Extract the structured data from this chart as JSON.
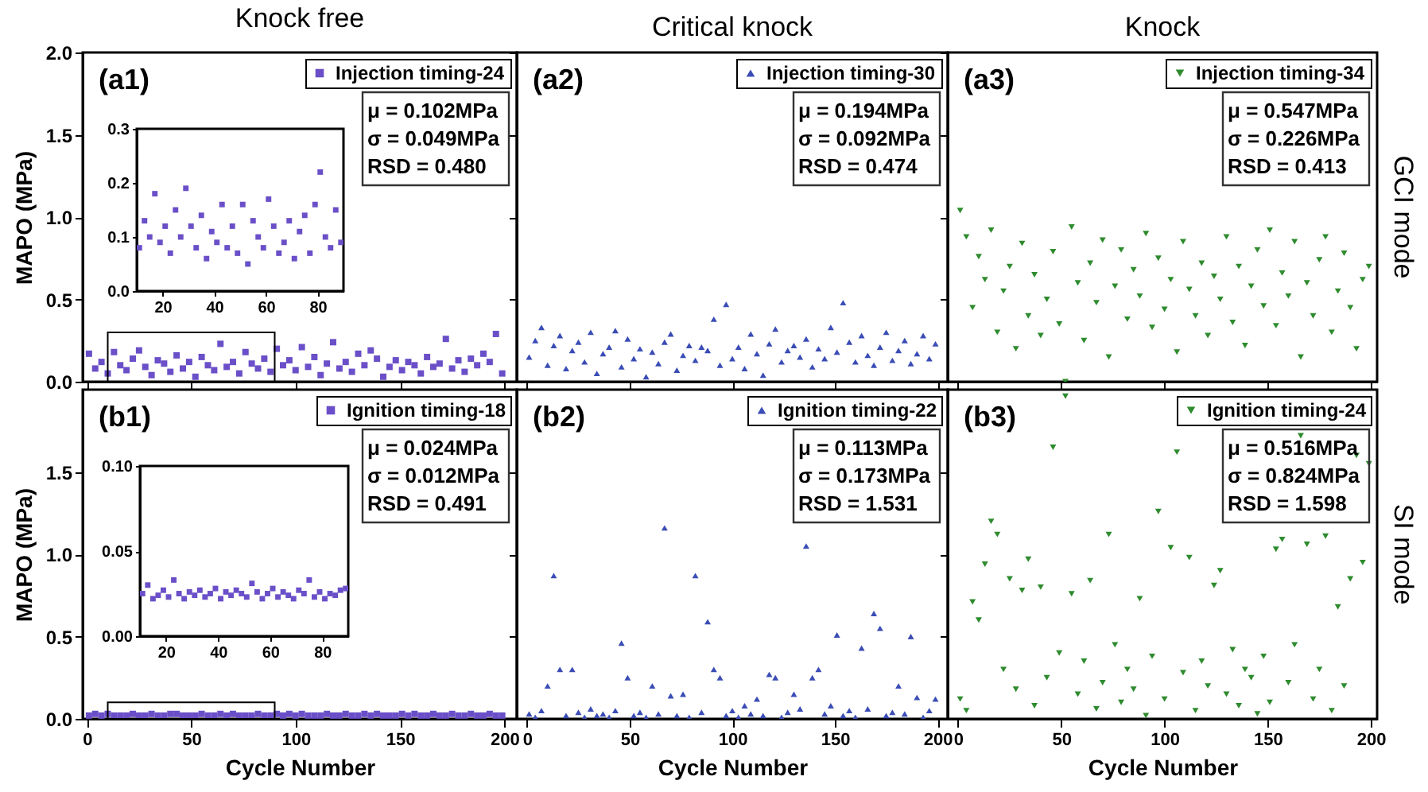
{
  "chart_data": [
    {
      "type": "scatter",
      "title": "Knock free",
      "ylabel": "MAPO (MPa)",
      "marker": "square",
      "legend": "top right",
      "tick_labels": "y",
      "xlim": [
        -2,
        206
      ],
      "xticks": [
        0,
        50,
        100,
        150,
        200
      ],
      "ylim": [
        0,
        2
      ],
      "yticks": [
        {
          "value": 0,
          "label": "0.0"
        },
        {
          "value": 0.5,
          "label": "0.5"
        },
        {
          "value": 1,
          "label": "1.0"
        },
        {
          "value": 1.5,
          "label": "1.5"
        },
        {
          "value": 2,
          "label": "2.0"
        }
      ],
      "annotations": [
        "(a1)",
        "μ = 0.102MPa",
        "σ = 0.049MPa",
        "RSD = 0.480"
      ],
      "x": [
        1,
        4,
        7,
        10,
        13,
        16,
        19,
        22,
        25,
        28,
        31,
        34,
        37,
        40,
        43,
        46,
        49,
        52,
        55,
        58,
        61,
        64,
        67,
        70,
        73,
        76,
        79,
        82,
        85,
        88,
        91,
        94,
        97,
        100,
        103,
        106,
        109,
        112,
        115,
        118,
        121,
        124,
        127,
        130,
        133,
        136,
        139,
        142,
        145,
        148,
        151,
        154,
        157,
        160,
        163,
        166,
        169,
        172,
        175,
        178,
        181,
        184,
        187,
        190,
        193,
        196,
        199
      ],
      "series": [
        {
          "name": "Injection timing-24",
          "color": "#6a4fc8",
          "values": [
            0.17,
            0.08,
            0.12,
            0.05,
            0.18,
            0.1,
            0.07,
            0.14,
            0.19,
            0.09,
            0.04,
            0.13,
            0.11,
            0.06,
            0.16,
            0.08,
            0.12,
            0.03,
            0.15,
            0.1,
            0.07,
            0.23,
            0.09,
            0.12,
            0.05,
            0.18,
            0.11,
            0.08,
            0.14,
            0.06,
            0.2,
            0.1,
            0.13,
            0.07,
            0.21,
            0.09,
            0.15,
            0.04,
            0.11,
            0.24,
            0.08,
            0.12,
            0.06,
            0.17,
            0.1,
            0.19,
            0.14,
            0.03,
            0.09,
            0.13,
            0.07,
            0.12,
            0.1,
            0.05,
            0.15,
            0.09,
            0.11,
            0.26,
            0.08,
            0.13,
            0.06,
            0.14,
            0.1,
            0.17,
            0.12,
            0.29,
            0.05
          ]
        }
      ]
    },
    {
      "type": "scatter",
      "marker": "square",
      "xlim": [
        10,
        90
      ],
      "xticks": [
        20,
        40,
        60,
        80
      ],
      "ylim": [
        0,
        0.3
      ],
      "yticks": [
        {
          "value": 0,
          "label": "0.0"
        },
        {
          "value": 0.1,
          "label": "0.1"
        },
        {
          "value": 0.2,
          "label": "0.2"
        },
        {
          "value": 0.3,
          "label": "0.3"
        }
      ],
      "x": [
        11,
        13,
        15,
        17,
        19,
        21,
        23,
        25,
        27,
        29,
        31,
        33,
        35,
        37,
        39,
        41,
        43,
        45,
        47,
        49,
        51,
        53,
        55,
        57,
        59,
        61,
        63,
        65,
        67,
        69,
        71,
        73,
        75,
        77,
        79,
        81,
        83,
        85,
        87,
        89
      ],
      "series": [
        {
          "color": "#6a4fc8",
          "values": [
            0.08,
            0.13,
            0.1,
            0.18,
            0.09,
            0.12,
            0.07,
            0.15,
            0.1,
            0.19,
            0.12,
            0.08,
            0.14,
            0.06,
            0.11,
            0.09,
            0.16,
            0.08,
            0.12,
            0.07,
            0.16,
            0.05,
            0.13,
            0.1,
            0.08,
            0.17,
            0.12,
            0.07,
            0.09,
            0.13,
            0.06,
            0.11,
            0.14,
            0.07,
            0.16,
            0.22,
            0.1,
            0.08,
            0.15,
            0.09
          ]
        }
      ]
    },
    {
      "type": "scatter",
      "title": "Critical knock",
      "marker": "triangle",
      "legend": "top right",
      "tick_labels": false,
      "xlim": [
        -5,
        205
      ],
      "xticks": [
        0,
        50,
        100,
        150,
        200
      ],
      "ylim": [
        0,
        2
      ],
      "yticks": [
        0,
        0.5,
        1,
        1.5,
        2
      ],
      "annotations": [
        "(a2)",
        "μ = 0.194MPa",
        "σ = 0.092MPa",
        "RSD = 0.474"
      ],
      "x": [
        1,
        4,
        7,
        10,
        13,
        16,
        19,
        22,
        25,
        28,
        31,
        34,
        37,
        40,
        43,
        46,
        49,
        52,
        55,
        58,
        61,
        64,
        67,
        70,
        73,
        76,
        79,
        82,
        85,
        88,
        91,
        94,
        97,
        100,
        103,
        106,
        109,
        112,
        115,
        118,
        121,
        124,
        127,
        130,
        133,
        136,
        139,
        142,
        145,
        148,
        151,
        154,
        157,
        160,
        163,
        166,
        169,
        172,
        175,
        178,
        181,
        184,
        187,
        190,
        193,
        196,
        199
      ],
      "series": [
        {
          "name": "Injection timing-30",
          "color": "#3a4cb5",
          "values": [
            0.15,
            0.25,
            0.33,
            0.1,
            0.22,
            0.28,
            0.08,
            0.19,
            0.24,
            0.12,
            0.3,
            0.05,
            0.17,
            0.21,
            0.31,
            0.09,
            0.26,
            0.14,
            0.2,
            0.03,
            0.18,
            0.11,
            0.24,
            0.29,
            0.07,
            0.16,
            0.22,
            0.13,
            0.21,
            0.19,
            0.38,
            0.1,
            0.47,
            0.14,
            0.21,
            0.08,
            0.29,
            0.17,
            0.04,
            0.23,
            0.32,
            0.12,
            0.19,
            0.22,
            0.15,
            0.26,
            0.09,
            0.2,
            0.14,
            0.33,
            0.18,
            0.48,
            0.24,
            0.12,
            0.28,
            0.16,
            0.1,
            0.21,
            0.3,
            0.13,
            0.19,
            0.25,
            0.11,
            0.17,
            0.28,
            0.14,
            0.23
          ]
        }
      ]
    },
    {
      "type": "scatter",
      "title": "Knock",
      "y2label": "GCI mode",
      "marker": "triangle-down",
      "legend": "top right",
      "tick_labels": false,
      "xlim": [
        -5,
        203
      ],
      "xticks": [
        0,
        50,
        100,
        150,
        200
      ],
      "ylim": [
        0,
        2
      ],
      "yticks": [
        0,
        0.5,
        1,
        1.5,
        2
      ],
      "annotations": [
        "(a3)",
        "μ = 0.547MPa",
        "σ = 0.226MPa",
        "RSD = 0.413"
      ],
      "x": [
        1,
        4,
        7,
        10,
        13,
        16,
        19,
        22,
        25,
        28,
        31,
        34,
        37,
        40,
        43,
        46,
        49,
        52,
        55,
        58,
        61,
        64,
        67,
        70,
        73,
        76,
        79,
        82,
        85,
        88,
        91,
        94,
        97,
        100,
        103,
        106,
        109,
        112,
        115,
        118,
        121,
        124,
        127,
        130,
        133,
        136,
        139,
        142,
        145,
        148,
        151,
        154,
        157,
        160,
        163,
        166,
        169,
        172,
        175,
        178,
        181,
        184,
        187,
        190,
        193,
        196,
        199
      ],
      "series": [
        {
          "name": "Injection timing-34",
          "color": "#2e8b2e",
          "values": [
            1.04,
            0.88,
            0.45,
            0.76,
            0.62,
            0.92,
            0.3,
            0.55,
            0.7,
            0.2,
            0.84,
            0.4,
            0.65,
            0.28,
            0.5,
            0.79,
            0.35,
            0.0,
            0.94,
            0.6,
            0.25,
            0.72,
            0.48,
            0.86,
            0.15,
            0.58,
            0.8,
            0.38,
            0.68,
            0.52,
            0.9,
            0.33,
            0.75,
            0.44,
            0.62,
            0.18,
            0.85,
            0.56,
            0.4,
            0.72,
            0.28,
            0.64,
            0.5,
            0.88,
            0.36,
            0.7,
            0.22,
            0.58,
            0.8,
            0.46,
            0.92,
            0.34,
            0.66,
            0.52,
            0.85,
            0.15,
            0.6,
            0.4,
            0.74,
            0.88,
            0.3,
            0.55,
            0.78,
            0.45,
            0.2,
            0.62,
            0.7
          ]
        }
      ]
    },
    {
      "type": "scatter",
      "ylabel": "MAPO (MPa)",
      "xlabel": "Cycle Number",
      "marker": "square",
      "legend": "top right",
      "xlim": [
        -2,
        206
      ],
      "xticks": [
        0,
        50,
        100,
        150,
        200
      ],
      "ylim": [
        0,
        2
      ],
      "yticks": [
        {
          "value": 0,
          "label": "0.0"
        },
        {
          "value": 0.5,
          "label": "0.5"
        },
        {
          "value": 1,
          "label": "1.0"
        },
        {
          "value": 1.5,
          "label": "1.5"
        }
      ],
      "annotations": [
        "(b1)",
        "μ = 0.024MPa",
        "σ = 0.012MPa",
        "RSD = 0.491"
      ],
      "x": [
        1,
        4,
        7,
        10,
        13,
        16,
        19,
        22,
        25,
        28,
        31,
        34,
        37,
        40,
        43,
        46,
        49,
        52,
        55,
        58,
        61,
        64,
        67,
        70,
        73,
        76,
        79,
        82,
        85,
        88,
        91,
        94,
        97,
        100,
        103,
        106,
        109,
        112,
        115,
        118,
        121,
        124,
        127,
        130,
        133,
        136,
        139,
        142,
        145,
        148,
        151,
        154,
        157,
        160,
        163,
        166,
        169,
        172,
        175,
        178,
        181,
        184,
        187,
        190,
        193,
        196,
        199
      ],
      "series": [
        {
          "name": "Ignition timing-18",
          "color": "#6a4fc8",
          "values": [
            0.02,
            0.03,
            0.02,
            0.03,
            0.02,
            0.02,
            0.02,
            0.03,
            0.02,
            0.02,
            0.03,
            0.02,
            0.02,
            0.03,
            0.03,
            0.02,
            0.02,
            0.02,
            0.03,
            0.02,
            0.02,
            0.03,
            0.02,
            0.03,
            0.02,
            0.02,
            0.02,
            0.03,
            0.02,
            0.02,
            0.03,
            0.02,
            0.03,
            0.02,
            0.03,
            0.02,
            0.02,
            0.02,
            0.03,
            0.02,
            0.02,
            0.03,
            0.02,
            0.02,
            0.03,
            0.02,
            0.03,
            0.02,
            0.02,
            0.02,
            0.03,
            0.02,
            0.03,
            0.02,
            0.02,
            0.03,
            0.02,
            0.02,
            0.03,
            0.02,
            0.02,
            0.03,
            0.02,
            0.02,
            0.03,
            0.02,
            0.02
          ]
        }
      ]
    },
    {
      "type": "scatter",
      "marker": "square",
      "xlim": [
        10,
        90
      ],
      "xticks": [
        20,
        40,
        60,
        80
      ],
      "ylim": [
        0,
        0.1
      ],
      "yticks": [
        {
          "value": 0,
          "label": "0.00"
        },
        {
          "value": 0.05,
          "label": "0.05"
        },
        {
          "value": 0.1,
          "label": "0.10"
        }
      ],
      "x": [
        11,
        13,
        15,
        17,
        19,
        21,
        23,
        25,
        27,
        29,
        31,
        33,
        35,
        37,
        39,
        41,
        43,
        45,
        47,
        49,
        51,
        53,
        55,
        57,
        59,
        61,
        63,
        65,
        67,
        69,
        71,
        73,
        75,
        77,
        79,
        81,
        83,
        85,
        87,
        89
      ],
      "series": [
        {
          "color": "#6a4fc8",
          "values": [
            0.025,
            0.03,
            0.022,
            0.024,
            0.027,
            0.023,
            0.033,
            0.025,
            0.022,
            0.026,
            0.024,
            0.027,
            0.023,
            0.025,
            0.028,
            0.022,
            0.026,
            0.024,
            0.027,
            0.025,
            0.023,
            0.031,
            0.026,
            0.022,
            0.025,
            0.028,
            0.023,
            0.026,
            0.024,
            0.022,
            0.027,
            0.025,
            0.033,
            0.023,
            0.026,
            0.022,
            0.025,
            0.024,
            0.027,
            0.028
          ]
        }
      ]
    },
    {
      "type": "scatter",
      "xlabel": "Cycle Number",
      "marker": "triangle",
      "legend": "top right",
      "tick_labels": "x",
      "xlim": [
        -5,
        205
      ],
      "xticks": [
        0,
        50,
        100,
        150,
        200
      ],
      "ylim": [
        0,
        2
      ],
      "yticks": [
        0,
        0.5,
        1,
        1.5
      ],
      "annotations": [
        "(b2)",
        "μ = 0.113MPa",
        "σ = 0.173MPa",
        "RSD = 1.531"
      ],
      "x": [
        1,
        4,
        7,
        10,
        13,
        16,
        19,
        22,
        25,
        28,
        31,
        34,
        37,
        40,
        43,
        46,
        49,
        52,
        55,
        58,
        61,
        64,
        67,
        70,
        73,
        76,
        79,
        82,
        85,
        88,
        91,
        94,
        97,
        100,
        103,
        106,
        109,
        112,
        115,
        118,
        121,
        124,
        127,
        130,
        133,
        136,
        139,
        142,
        145,
        148,
        151,
        154,
        157,
        160,
        163,
        166,
        169,
        172,
        175,
        178,
        181,
        184,
        187,
        190,
        193,
        196,
        199
      ],
      "series": [
        {
          "name": "Ignition timing-22",
          "color": "#3a4cb5",
          "values": [
            0.03,
            0.01,
            0.05,
            0.2,
            0.87,
            0.3,
            0.02,
            0.3,
            0.04,
            0.01,
            0.06,
            0.02,
            0.03,
            0.01,
            0.05,
            0.46,
            0.25,
            0.02,
            0.04,
            0.01,
            0.2,
            0.03,
            1.16,
            0.14,
            0.02,
            0.15,
            0.01,
            0.87,
            0.04,
            0.59,
            0.3,
            0.25,
            0.02,
            0.05,
            0.01,
            0.08,
            0.03,
            0.12,
            0.02,
            0.27,
            0.25,
            0.01,
            0.04,
            0.15,
            0.06,
            1.05,
            0.25,
            0.3,
            0.03,
            0.08,
            0.51,
            0.02,
            0.05,
            0.01,
            0.43,
            0.06,
            0.64,
            0.55,
            0.02,
            0.04,
            0.2,
            0.03,
            0.5,
            0.13,
            0.01,
            0.05,
            0.12
          ]
        }
      ]
    },
    {
      "type": "scatter",
      "xlabel": "Cycle Number",
      "y2label": "SI mode",
      "marker": "triangle-down",
      "legend": "top right",
      "tick_labels": "x",
      "xlim": [
        -5,
        203
      ],
      "xticks": [
        0,
        50,
        100,
        150,
        200
      ],
      "ylim": [
        0,
        2
      ],
      "yticks": [
        0,
        0.5,
        1,
        1.5
      ],
      "annotations": [
        "(b3)",
        "μ = 0.516MPa",
        "σ = 0.824MPa",
        "RSD = 1.598"
      ],
      "x": [
        1,
        4,
        7,
        10,
        13,
        16,
        19,
        22,
        25,
        28,
        31,
        34,
        37,
        40,
        43,
        46,
        49,
        52,
        55,
        58,
        61,
        64,
        67,
        70,
        73,
        76,
        79,
        82,
        85,
        88,
        91,
        94,
        97,
        100,
        103,
        106,
        109,
        112,
        115,
        118,
        121,
        124,
        127,
        130,
        133,
        136,
        139,
        142,
        145,
        148,
        151,
        154,
        157,
        160,
        163,
        166,
        169,
        172,
        175,
        178,
        181,
        184,
        187,
        190,
        193,
        196,
        199
      ],
      "series": [
        {
          "name": "Ignition timing-24",
          "color": "#2e8b2e",
          "values": [
            0.12,
            0.05,
            0.71,
            0.6,
            0.94,
            1.2,
            1.12,
            0.3,
            0.85,
            0.18,
            0.78,
            0.97,
            0.08,
            0.8,
            0.25,
            1.65,
            0.4,
            1.96,
            0.76,
            0.15,
            0.35,
            0.84,
            0.06,
            0.22,
            1.12,
            0.45,
            0.1,
            0.3,
            0.18,
            0.73,
            0.02,
            0.38,
            1.26,
            0.12,
            1.04,
            1.62,
            0.28,
            0.98,
            0.05,
            0.35,
            0.2,
            0.81,
            0.9,
            0.15,
            0.42,
            0.08,
            0.3,
            0.25,
            0.03,
            0.38,
            0.1,
            1.03,
            1.09,
            0.22,
            0.45,
            1.72,
            1.06,
            0.12,
            0.3,
            1.11,
            0.05,
            0.68,
            0.2,
            0.85,
            1.6,
            0.95,
            1.55
          ]
        }
      ]
    }
  ]
}
